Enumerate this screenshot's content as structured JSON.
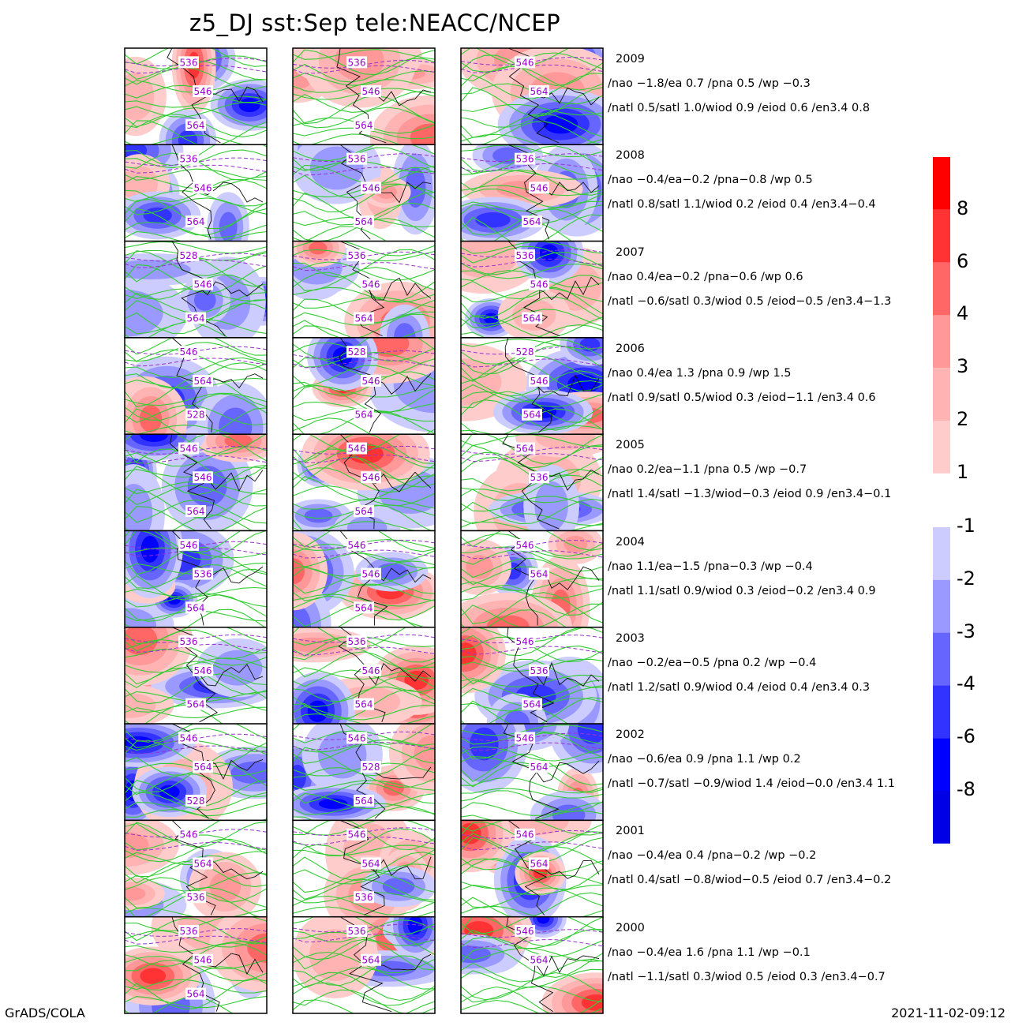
{
  "title": "z5_DJ sst:Sep tele:NEACC/NCEP",
  "footer": {
    "left": "GrADS/COLA",
    "right": "2021-11-02-09:12"
  },
  "colors": {
    "pos": [
      "#ffcccc",
      "#ffb3b3",
      "#ff9999",
      "#ff6666",
      "#ff3333",
      "#ff0000"
    ],
    "neg": [
      "#ccccff",
      "#9999ff",
      "#6666ff",
      "#3333ff",
      "#0000ff",
      "#0000e6"
    ],
    "contour_green": "#33cc33",
    "contour_dashed": "#9933cc",
    "contour_label": "#9900cc",
    "coast": "#111111"
  },
  "colorbar": {
    "positive_labels": [
      "8",
      "6",
      "4",
      "3",
      "2",
      "1"
    ],
    "negative_labels": [
      "-1",
      "-2",
      "-3",
      "-4",
      "-6",
      "-8"
    ]
  },
  "chart_data": {
    "type": "heatmap",
    "title": "z5_DJ sst:Sep tele:NEACC/NCEP",
    "rows": [
      {
        "year": "2009",
        "line1": "/nao −1.8/ea 0.7 /pna 0.5 /wp −0.3",
        "line2": "/natl  0.5/satl  1.0/wiod 0.9 /eiod 0.6 /en3.4 0.8",
        "labels": [
          [
            "536",
            "546",
            "564"
          ],
          [
            "536",
            "546",
            "564"
          ],
          [
            "546",
            "564"
          ]
        ]
      },
      {
        "year": "2008",
        "line1": "/nao −0.4/ea−0.2 /pna−0.8 /wp  0.5",
        "line2": "/natl  0.8/satl  1.1/wiod 0.2 /eiod 0.4 /en3.4−0.4",
        "labels": [
          [
            "536",
            "546",
            "564"
          ],
          [
            "536",
            "546",
            "564"
          ],
          [
            "536",
            "546",
            "564"
          ]
        ]
      },
      {
        "year": "2007",
        "line1": "/nao  0.4/ea−0.2 /pna−0.6 /wp  0.6",
        "line2": "/natl −0.6/satl  0.3/wiod 0.5 /eiod−0.5 /en3.4−1.3",
        "labels": [
          [
            "528",
            "546",
            "564"
          ],
          [
            "536",
            "546",
            "564"
          ],
          [
            "536",
            "546",
            "564"
          ]
        ]
      },
      {
        "year": "2006",
        "line1": "/nao  0.4/ea 1.3 /pna 0.9 /wp  1.5",
        "line2": "/natl  0.9/satl  0.5/wiod 0.3 /eiod−1.1 /en3.4 0.6",
        "labels": [
          [
            "546",
            "564",
            "528"
          ],
          [
            "528",
            "546",
            "564"
          ],
          [
            "528",
            "546",
            "564"
          ]
        ]
      },
      {
        "year": "2005",
        "line1": "/nao  0.2/ea−1.1 /pna 0.5 /wp −0.7",
        "line2": "/natl  1.4/satl −1.3/wiod−0.3 /eiod 0.9 /en3.4−0.1",
        "labels": [
          [
            "546",
            "546",
            "564"
          ],
          [
            "546",
            "546",
            "564"
          ],
          [
            "564",
            "536"
          ]
        ]
      },
      {
        "year": "2004",
        "line1": "/nao  1.1/ea−1.5 /pna−0.3 /wp −0.4",
        "line2": "/natl  1.1/satl  0.9/wiod 0.3 /eiod−0.2 /en3.4 0.9",
        "labels": [
          [
            "546",
            "536",
            "564"
          ],
          [
            "546",
            "546",
            "564"
          ],
          [
            "546",
            "564"
          ]
        ]
      },
      {
        "year": "2003",
        "line1": "/nao −0.2/ea−0.5 /pna 0.2 /wp −0.4",
        "line2": "/natl  1.2/satl  0.9/wiod 0.4 /eiod 0.4 /en3.4 0.3",
        "labels": [
          [
            "536",
            "546",
            "564"
          ],
          [
            "536",
            "546",
            "564"
          ],
          [
            "546",
            "536",
            "564"
          ]
        ]
      },
      {
        "year": "2002",
        "line1": "/nao −0.6/ea 0.9 /pna 1.1 /wp  0.2",
        "line2": "/natl −0.7/satl −0.9/wiod 1.4 /eiod−0.0 /en3.4 1.1",
        "labels": [
          [
            "546",
            "564",
            "528"
          ],
          [
            "546",
            "528",
            "564"
          ],
          [
            "546",
            "564"
          ]
        ]
      },
      {
        "year": "2001",
        "line1": "/nao −0.4/ea 0.4 /pna−0.2 /wp −0.2",
        "line2": "/natl  0.4/satl −0.8/wiod−0.5 /eiod 0.7 /en3.4−0.2",
        "labels": [
          [
            "546",
            "564",
            "536"
          ],
          [
            "546",
            "564",
            "536"
          ],
          [
            "546",
            "564"
          ]
        ]
      },
      {
        "year": "2000",
        "line1": "/nao −0.4/ea 1.6 /pna 1.1 /wp −0.1",
        "line2": "/natl −1.1/satl  0.3/wiod 0.5 /eiod 0.3 /en3.4−0.7",
        "labels": [
          [
            "536",
            "546",
            "564"
          ],
          [
            "536",
            "564"
          ],
          [
            "546",
            "564"
          ]
        ]
      }
    ]
  }
}
